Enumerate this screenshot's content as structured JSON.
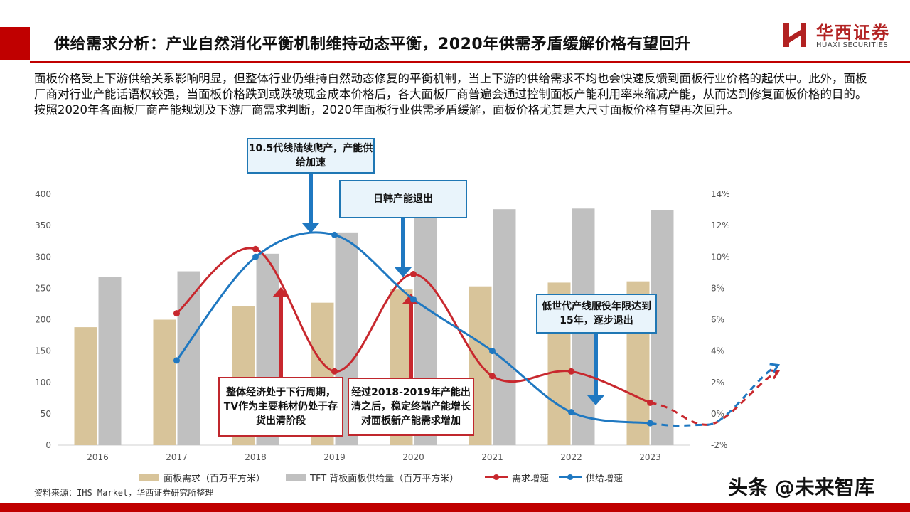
{
  "slide": {
    "title": "供给需求分析：产业自然消化平衡机制维持动态平衡，2020年供需矛盾缓解价格有望回升",
    "paragraphs": [
      "面板价格受上下游供给关系影响明显，但整体行业仍维持自然动态修复的平衡机制，当上下游的供给需求不均也会快速反馈到面板行业价格的起伏中。此外，面板厂商对行业产能话语权较强，当面板价格跌到或跌破现金成本价格后，各大面板厂商普遍会通过控制面板产能利用率来缩减产能，从而达到修复面板价格的目的。",
      "按照2020年各面板厂商产能规划及下游厂商需求判断，2020年面板行业供需矛盾缓解，面板价格尤其是大尺寸面板价格有望再次回升。"
    ],
    "source": "资料来源：IHS Market，华西证券研究所整理",
    "watermark": "头条 @未来智库"
  },
  "logo": {
    "cn": "华西证券",
    "en": "HUAXI SECURITIES"
  },
  "colors": {
    "accent": "#c00000",
    "demand_bar": "#d8c49a",
    "supply_bar": "#c0c0c0",
    "demand_line": "#c8282e",
    "supply_line": "#1f78c1"
  },
  "callouts": {
    "c1": "10.5代线陆续爬产，产能供给加速",
    "c2": "日韩产能退出",
    "c3": "低世代产线服役年限达到15年，逐步退出",
    "c4": "整体经济处于下行周期，TV作为主要耗材仍处于存货出清阶段",
    "c5": "经过2018-2019年产能出清之后，稳定终端产能增长对面板新产能需求增加"
  },
  "chart_data": {
    "type": "bar+line",
    "categories": [
      "2016",
      "2017",
      "2018",
      "2019",
      "2020",
      "2021",
      "2022",
      "2023"
    ],
    "series": [
      {
        "name": "面板需求（百万平方米）",
        "type": "bar",
        "axis": "left",
        "values": [
          188,
          200,
          221,
          227,
          248,
          253,
          259,
          261
        ]
      },
      {
        "name": "TFT 背板面板供给量（百万平方米）",
        "type": "bar",
        "axis": "left",
        "values": [
          268,
          277,
          305,
          339,
          364,
          376,
          377,
          375
        ]
      },
      {
        "name": "需求增速",
        "type": "line",
        "axis": "right",
        "unit": "%",
        "values": [
          null,
          6.4,
          10.5,
          2.7,
          8.9,
          2.4,
          2.7,
          0.7
        ]
      },
      {
        "name": "供给增速",
        "type": "line",
        "axis": "right",
        "unit": "%",
        "values": [
          null,
          3.4,
          10.0,
          11.4,
          7.3,
          4.0,
          0.1,
          -0.6
        ]
      }
    ],
    "projection": {
      "style": "dashed",
      "demand_end": 2.7,
      "supply_end": 3.1
    },
    "y_left": {
      "min": 0,
      "max": 400,
      "ticks": [
        "0",
        "50",
        "100",
        "150",
        "200",
        "250",
        "300",
        "350",
        "400"
      ]
    },
    "y_right": {
      "min": -2,
      "max": 14,
      "ticks": [
        "-2%",
        "0%",
        "2%",
        "4%",
        "6%",
        "8%",
        "10%",
        "12%",
        "14%"
      ]
    },
    "grid": false,
    "legend_position": "bottom"
  }
}
